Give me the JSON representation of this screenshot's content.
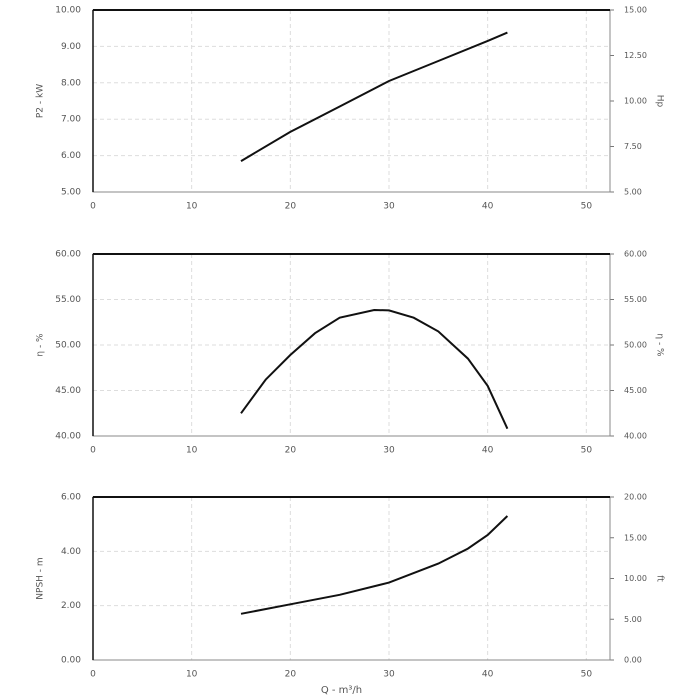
{
  "chart_data": [
    {
      "type": "line",
      "ylabel": "P2 - kW",
      "y2label": "Hp",
      "xlim": [
        0,
        52.4
      ],
      "xticks": [
        0,
        10,
        20,
        30,
        40,
        50
      ],
      "ylim": [
        5,
        10
      ],
      "yticks": [
        {
          "value": 5,
          "label": "5.00"
        },
        {
          "value": 6,
          "label": "6.00"
        },
        {
          "value": 7,
          "label": "7.00"
        },
        {
          "value": 8,
          "label": "8.00"
        },
        {
          "value": 9,
          "label": "9.00"
        },
        {
          "value": 10,
          "label": "10.00"
        }
      ],
      "y2lim": [
        5,
        15
      ],
      "y2ticks": [
        {
          "value": 5,
          "label": "5.00"
        },
        {
          "value": 7.5,
          "label": "7.50"
        },
        {
          "value": 10,
          "label": "10.00"
        },
        {
          "value": 12.5,
          "label": "12.50"
        },
        {
          "value": 15,
          "label": "15.00"
        }
      ],
      "grid": true,
      "series": [
        {
          "color": "#111111",
          "x": [
            15,
            20,
            25,
            30,
            35,
            40,
            42
          ],
          "values": [
            5.85,
            6.65,
            7.35,
            8.05,
            8.6,
            9.15,
            9.38
          ]
        }
      ]
    },
    {
      "type": "line",
      "ylabel": "η - %",
      "y2label": "η - %",
      "xlim": [
        0,
        52.4
      ],
      "xticks": [
        0,
        10,
        20,
        30,
        40,
        50
      ],
      "ylim": [
        40,
        60
      ],
      "yticks": [
        {
          "value": 40,
          "label": "40.00"
        },
        {
          "value": 45,
          "label": "45.00"
        },
        {
          "value": 50,
          "label": "50.00"
        },
        {
          "value": 55,
          "label": "55.00"
        },
        {
          "value": 60,
          "label": "60.00"
        }
      ],
      "y2lim": [
        40,
        60
      ],
      "y2ticks": [
        {
          "value": 40,
          "label": "40.00"
        },
        {
          "value": 45,
          "label": "45.00"
        },
        {
          "value": 50,
          "label": "50.00"
        },
        {
          "value": 55,
          "label": "55.00"
        },
        {
          "value": 60,
          "label": "60.00"
        }
      ],
      "grid": true,
      "series": [
        {
          "color": "#111111",
          "x": [
            15,
            17.5,
            20,
            22.5,
            25,
            28.5,
            30,
            32.5,
            35,
            38,
            40,
            42
          ],
          "values": [
            42.5,
            46.2,
            48.9,
            51.3,
            53.0,
            53.85,
            53.8,
            53.0,
            51.5,
            48.5,
            45.5,
            40.8
          ]
        }
      ]
    },
    {
      "type": "line",
      "ylabel": "NPSH - m",
      "y2label": "ft",
      "xlabel": "Q - m³/h",
      "xlim": [
        0,
        52.4
      ],
      "xticks": [
        0,
        10,
        20,
        30,
        40,
        50
      ],
      "ylim": [
        0,
        6
      ],
      "yticks": [
        {
          "value": 0,
          "label": "0.00"
        },
        {
          "value": 2,
          "label": "2.00"
        },
        {
          "value": 4,
          "label": "4.00"
        },
        {
          "value": 6,
          "label": "6.00"
        }
      ],
      "y2lim": [
        0,
        20
      ],
      "y2ticks": [
        {
          "value": 0,
          "label": "0.00"
        },
        {
          "value": 5,
          "label": "5.00"
        },
        {
          "value": 10,
          "label": "10.00"
        },
        {
          "value": 15,
          "label": "15.00"
        },
        {
          "value": 20,
          "label": "20.00"
        }
      ],
      "grid": true,
      "series": [
        {
          "color": "#111111",
          "x": [
            15,
            20,
            25,
            30,
            35,
            38,
            40,
            42
          ],
          "values": [
            1.7,
            2.05,
            2.4,
            2.85,
            3.55,
            4.1,
            4.6,
            5.3
          ]
        }
      ]
    }
  ]
}
